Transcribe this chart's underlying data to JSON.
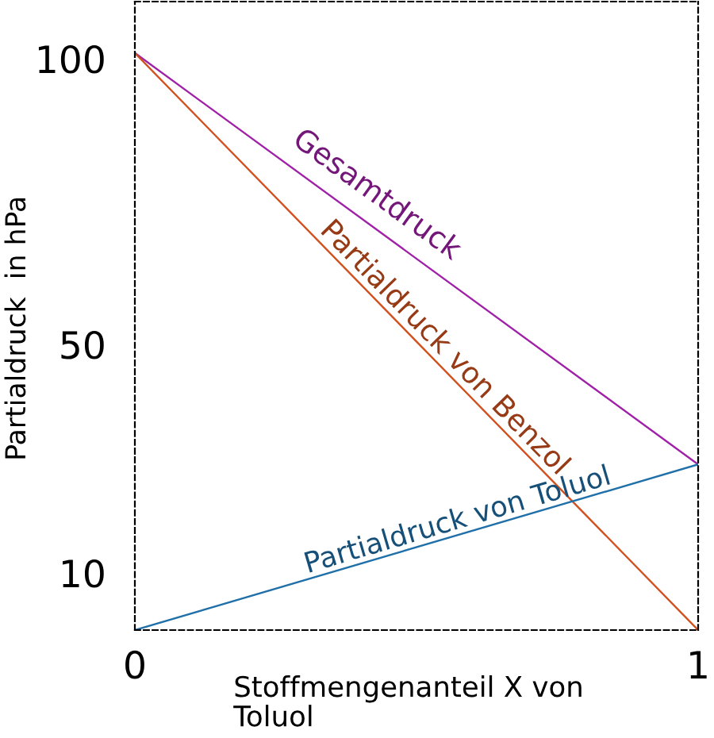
{
  "chart_data": {
    "type": "line",
    "xlabel": "Stoffmengenanteil X von\nToluol",
    "ylabel": "Partialdruck  in hPa",
    "x": [
      0,
      1
    ],
    "xlim": [
      0,
      1
    ],
    "xticks": [
      0,
      1
    ],
    "ylim": [
      0,
      110
    ],
    "yticks": [
      10,
      50,
      100
    ],
    "line_style": "solid",
    "series": [
      {
        "name": "Gesamtdruck",
        "color": "#a020a8",
        "values": [
          101,
          29
        ]
      },
      {
        "name": "Partialdruck von Benzol",
        "color": "#d2501e",
        "values": [
          101,
          0
        ]
      },
      {
        "name": "Partialdruck von Toluol",
        "color": "#1f6fa8",
        "values": [
          0,
          29
        ]
      }
    ]
  }
}
